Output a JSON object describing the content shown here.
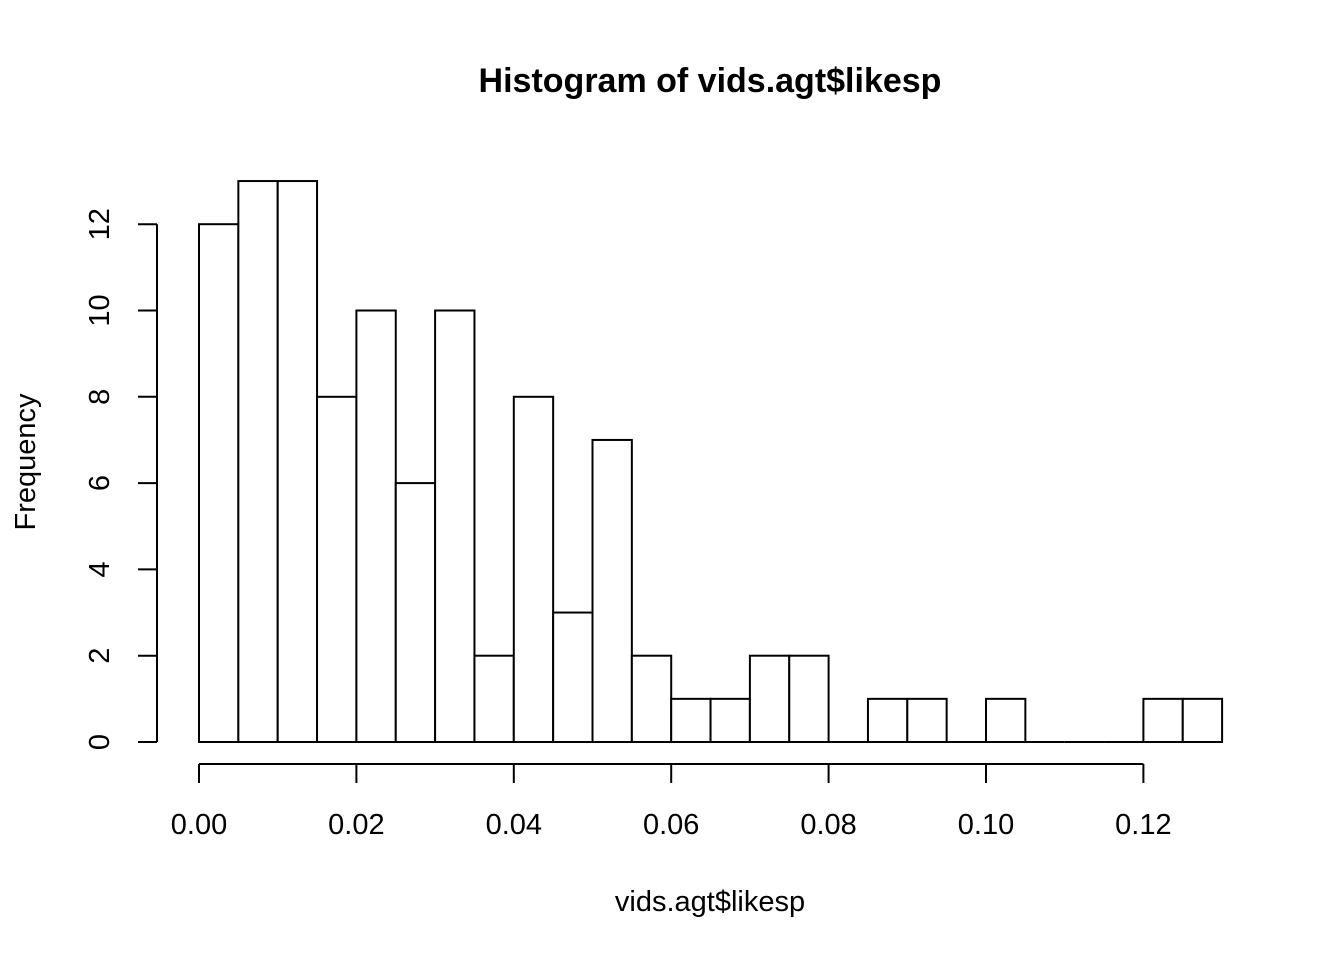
{
  "chart_data": {
    "type": "bar",
    "title": "Histogram of vids.agt$likesp",
    "xlabel": "vids.agt$likesp",
    "ylabel": "Frequency",
    "bin_width": 0.005,
    "x_start": 0.0,
    "values": [
      12,
      13,
      13,
      8,
      10,
      6,
      10,
      2,
      8,
      3,
      7,
      2,
      1,
      1,
      2,
      2,
      0,
      1,
      1,
      0,
      1,
      0,
      0,
      0,
      1,
      1
    ],
    "xlim": [
      0.0,
      0.13
    ],
    "x_axis_range": [
      0.0,
      0.12
    ],
    "ylim": [
      0,
      12
    ],
    "x_ticks": [
      {
        "value": 0.0,
        "label": "0.00"
      },
      {
        "value": 0.02,
        "label": "0.02"
      },
      {
        "value": 0.04,
        "label": "0.04"
      },
      {
        "value": 0.06,
        "label": "0.06"
      },
      {
        "value": 0.08,
        "label": "0.08"
      },
      {
        "value": 0.1,
        "label": "0.10"
      },
      {
        "value": 0.12,
        "label": "0.12"
      }
    ],
    "y_ticks": [
      {
        "value": 0,
        "label": "0"
      },
      {
        "value": 2,
        "label": "2"
      },
      {
        "value": 4,
        "label": "4"
      },
      {
        "value": 6,
        "label": "6"
      },
      {
        "value": 8,
        "label": "8"
      },
      {
        "value": 10,
        "label": "10"
      },
      {
        "value": 12,
        "label": "12"
      }
    ],
    "colors": {
      "bar_fill": "#ffffff",
      "bar_stroke": "#000000",
      "background": "#ffffff"
    },
    "grid": false,
    "legend": "none"
  }
}
